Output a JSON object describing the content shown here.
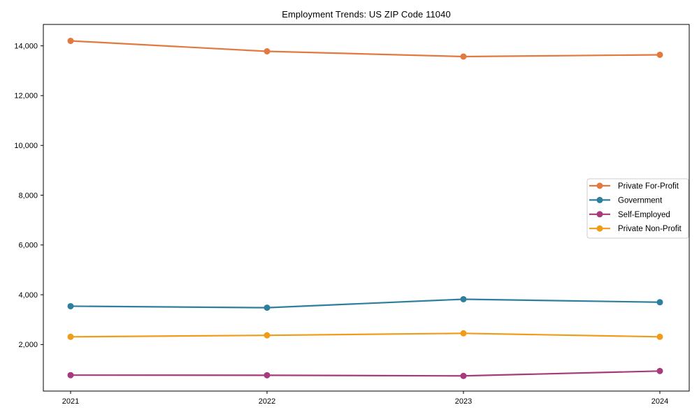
{
  "title": "Employment Trends: US ZIP Code 11040",
  "colors": {
    "background": "#ffffff",
    "text": "#000000",
    "axis": "#000000",
    "legend_border": "#cccccc",
    "legend_background": "#ffffff"
  },
  "chart_data": {
    "type": "line",
    "title": "Employment Trends: US ZIP Code 11040",
    "x": [
      "2021",
      "2022",
      "2023",
      "2024"
    ],
    "xlabel": "",
    "ylabel": "",
    "ylim": [
      130,
      14860
    ],
    "yticks": [
      2000,
      4000,
      6000,
      8000,
      10000,
      12000,
      14000
    ],
    "ytick_labels": [
      "2,000",
      "4,000",
      "6,000",
      "8,000",
      "10,000",
      "12,000",
      "14,000"
    ],
    "grid": false,
    "legend_position": "center-right",
    "marker": "circle",
    "series": [
      {
        "name": "Private For-Profit",
        "color": "#e2793f",
        "values": [
          14200,
          13780,
          13570,
          13640
        ]
      },
      {
        "name": "Government",
        "color": "#2e7f9e",
        "values": [
          3540,
          3480,
          3820,
          3700
        ]
      },
      {
        "name": "Self-Employed",
        "color": "#a63a7d",
        "values": [
          770,
          765,
          740,
          935
        ]
      },
      {
        "name": "Private Non-Profit",
        "color": "#f09c18",
        "values": [
          2310,
          2370,
          2450,
          2310
        ]
      }
    ]
  }
}
